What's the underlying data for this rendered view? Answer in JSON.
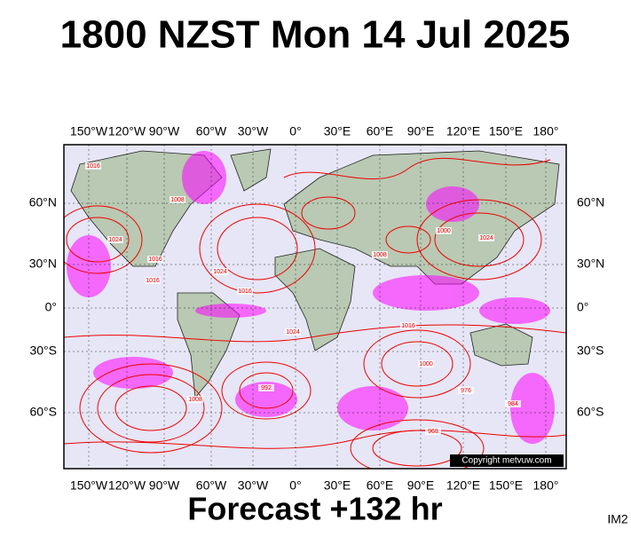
{
  "header": {
    "title": "1800 NZST Mon 14 Jul 2025"
  },
  "map": {
    "lon_labels": [
      "150°W",
      "120°W",
      "90°W",
      "60°W",
      "30°W",
      "0°",
      "30°E",
      "60°E",
      "90°E",
      "120°E",
      "150°E",
      "180°"
    ],
    "lat_labels": [
      "60°N",
      "30°N",
      "0°",
      "30°S",
      "60°S"
    ],
    "isobar_labels": [
      "1016",
      "1024",
      "1016",
      "1008",
      "1016",
      "1024",
      "1016",
      "1008",
      "1000",
      "1024",
      "1016",
      "1024",
      "1000",
      "992",
      "976",
      "968",
      "984",
      "1008"
    ],
    "copyright": "Copyright metvuw.com"
  },
  "footer": {
    "forecast": "Forecast +132 hr",
    "code": "IM2"
  }
}
